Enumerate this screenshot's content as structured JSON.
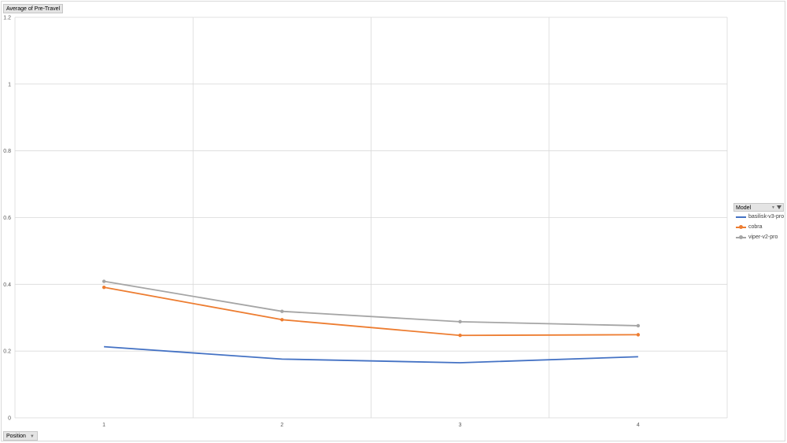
{
  "value_field": "Average of Pre-Travel",
  "axis_field": "Position",
  "legend": {
    "title": "Model",
    "filter_icon": "filter-icon",
    "dropdown_icon": "chevron-down-icon"
  },
  "colors": {
    "basilisk-v3-pro": "#4472c4",
    "cobra": "#ed7d31",
    "viper-v2-pro": "#a5a5a5",
    "grid": "#d9d9d9"
  },
  "chart_data": {
    "type": "line",
    "title": "",
    "xlabel": "Position",
    "ylabel": "Average of Pre-Travel",
    "categories": [
      "1",
      "2",
      "3",
      "4"
    ],
    "ylim": [
      0,
      1.2
    ],
    "yticks": [
      "0",
      "0.2",
      "0.4",
      "0.6",
      "0.8",
      "1",
      "1.2"
    ],
    "grid": true,
    "legend_position": "right",
    "series": [
      {
        "name": "basilisk-v3-pro",
        "values": [
          0.213,
          0.176,
          0.165,
          0.183
        ],
        "markers": false
      },
      {
        "name": "cobra",
        "values": [
          0.391,
          0.294,
          0.247,
          0.249
        ],
        "markers": true
      },
      {
        "name": "viper-v2-pro",
        "values": [
          0.409,
          0.319,
          0.288,
          0.276
        ],
        "markers": true
      }
    ]
  }
}
